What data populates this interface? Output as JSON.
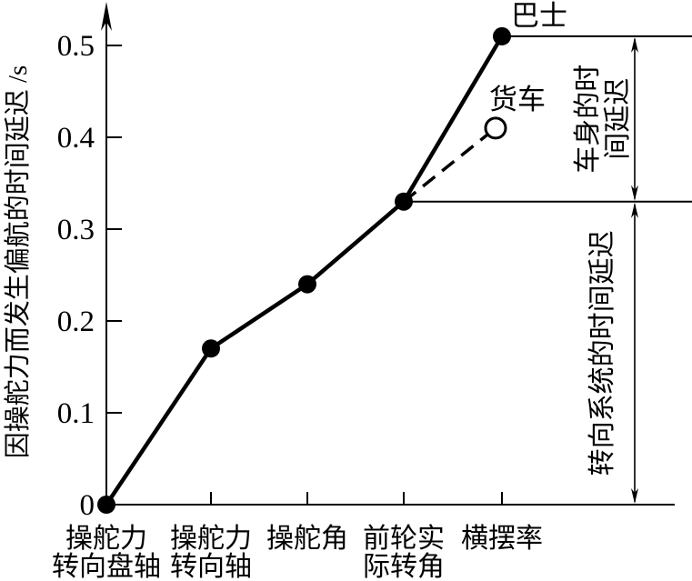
{
  "figure": {
    "background_color": "#ffffff",
    "ink_color": "#000000"
  },
  "chart_data": {
    "type": "line",
    "title": "",
    "xlabel": "",
    "ylabel": "因操舵力而发生偏航的时间延迟 /s",
    "categories": [
      [
        "操舵力",
        "转向盘轴"
      ],
      [
        "操舵力",
        "转向轴"
      ],
      [
        "操舵角"
      ],
      [
        "前轮实",
        "际转角"
      ],
      [
        "横摆率"
      ]
    ],
    "yticks": [
      "0",
      "0.1",
      "0.2",
      "0.3",
      "0.4",
      "0.5"
    ],
    "ytick_values": [
      0,
      0.1,
      0.2,
      0.3,
      0.4,
      0.5
    ],
    "ylim": [
      0,
      0.545
    ],
    "grid": "off",
    "series": [
      {
        "name": "巴士",
        "line": "solid",
        "marker": "filled",
        "values": [
          0,
          0.17,
          0.24,
          0.33,
          0.51
        ]
      },
      {
        "name": "货车",
        "line": "dashed",
        "marker": "open",
        "values": [
          null,
          null,
          null,
          0.33,
          0.41
        ]
      }
    ],
    "reference_lines": [
      {
        "value": 0.51,
        "from_category": 4
      },
      {
        "value": 0.33,
        "from_category": 3
      }
    ],
    "annotations": [
      {
        "text_lines": [
          "车身的时",
          "间延迟"
        ],
        "from": 0.33,
        "to": 0.51
      },
      {
        "text_lines": [
          "转向系统的时间延迟"
        ],
        "from": 0,
        "to": 0.33
      }
    ]
  }
}
